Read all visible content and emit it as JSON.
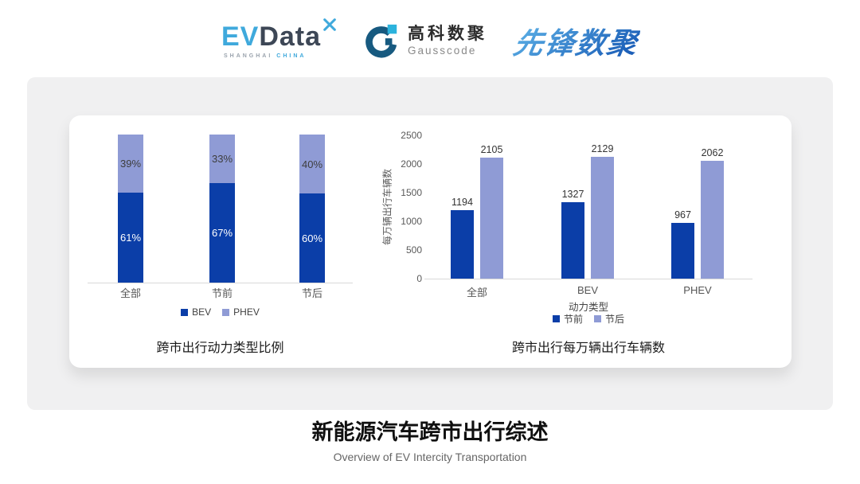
{
  "header": {
    "evdata": {
      "ev": "EV",
      "data": "Data",
      "sub_left": "SHANGHAI",
      "sub_right": "CHINA"
    },
    "gausscode": {
      "name_cn": "高科数聚",
      "name_en": "Gausscode"
    },
    "pioneer": {
      "name": "先锋数聚"
    }
  },
  "colors": {
    "series_dark": "#0B3EA8",
    "series_light": "#8F9BD5",
    "axis_line": "#D9D9D9",
    "evdata_blue": "#3FA9DC",
    "evdata_dark": "#3D4756",
    "gauss_dark": "#175A80",
    "gauss_cyan": "#2BB3DD",
    "pioneer_blue": "#2D79C7"
  },
  "chart_data": [
    {
      "type": "bar",
      "subtype": "stacked-percent",
      "title": "跨市出行动力类型比例",
      "categories": [
        "全部",
        "节前",
        "节后"
      ],
      "series": [
        {
          "name": "BEV",
          "color": "#0B3EA8",
          "values": [
            61,
            67,
            60
          ]
        },
        {
          "name": "PHEV",
          "color": "#8F9BD5",
          "values": [
            39,
            33,
            40
          ]
        }
      ],
      "value_suffix": "%",
      "label_colors": [
        "#FFFFFF",
        "#3D3D3D"
      ],
      "ylim": [
        0,
        100
      ],
      "grid": false,
      "legend_position": "bottom"
    },
    {
      "type": "bar",
      "subtype": "grouped",
      "title": "跨市出行每万辆出行车辆数",
      "categories": [
        "全部",
        "BEV",
        "PHEV"
      ],
      "series": [
        {
          "name": "节前",
          "color": "#0B3EA8",
          "values": [
            1194,
            1327,
            967
          ]
        },
        {
          "name": "节后",
          "color": "#8F9BD5",
          "values": [
            2105,
            2129,
            2062
          ]
        }
      ],
      "xlabel": "动力类型",
      "ylabel": "每万辆出行车辆数",
      "yticks": [
        0,
        500,
        1000,
        1500,
        2000,
        2500
      ],
      "ylim": [
        0,
        2500
      ],
      "grid": false,
      "legend_position": "bottom"
    }
  ],
  "footer": {
    "title": "新能源汽车跨市出行综述",
    "subtitle": "Overview of EV Intercity Transportation"
  }
}
